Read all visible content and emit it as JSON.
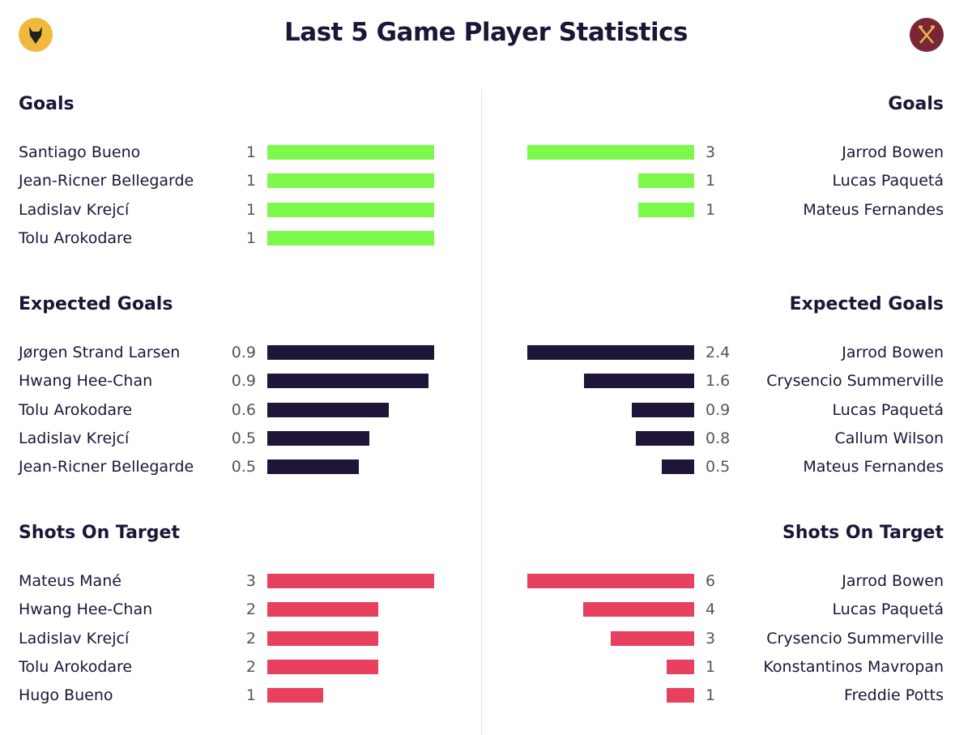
{
  "title": "Last 5 Game Player Statistics",
  "colors": {
    "goals": "#7cf94b",
    "xg": "#1f1538",
    "shots": "#e8415f",
    "text": "#1c1538"
  },
  "home_logo": "wolves-crest-icon",
  "away_logo": "west-ham-crest-icon",
  "chart_data": [
    {
      "type": "bar",
      "title": "Goals",
      "home": [
        {
          "name": "Santiago Bueno",
          "value": "1",
          "fill": 1
        },
        {
          "name": "Jean-Ricner Bellegarde",
          "value": "1",
          "fill": 1
        },
        {
          "name": "Ladislav Krejcí",
          "value": "1",
          "fill": 1
        },
        {
          "name": "Tolu Arokodare",
          "value": "1",
          "fill": 1
        }
      ],
      "away": [
        {
          "name": "Jarrod Bowen",
          "value": "3",
          "fill": 1
        },
        {
          "name": "Lucas Paquetá",
          "value": "1",
          "fill": 0.333
        },
        {
          "name": "Mateus Fernandes",
          "value": "1",
          "fill": 0.333
        }
      ]
    },
    {
      "type": "bar",
      "title": "Expected Goals",
      "home": [
        {
          "name": "Jørgen Strand Larsen",
          "value": "0.9",
          "fill": 1
        },
        {
          "name": "Hwang Hee-Chan",
          "value": "0.9",
          "fill": 0.966
        },
        {
          "name": "Tolu Arokodare",
          "value": "0.6",
          "fill": 0.728
        },
        {
          "name": "Ladislav Krejcí",
          "value": "0.5",
          "fill": 0.612
        },
        {
          "name": "Jean-Ricner Bellegarde",
          "value": "0.5",
          "fill": 0.549
        }
      ],
      "away": [
        {
          "name": "Jarrod Bowen",
          "value": "2.4",
          "fill": 1
        },
        {
          "name": "Crysencio Summerville",
          "value": "1.6",
          "fill": 0.66
        },
        {
          "name": "Lucas Paquetá",
          "value": "0.9",
          "fill": 0.374
        },
        {
          "name": "Callum Wilson",
          "value": "0.8",
          "fill": 0.35
        },
        {
          "name": "Mateus Fernandes",
          "value": "0.5",
          "fill": 0.194
        }
      ]
    },
    {
      "type": "bar",
      "title": "Shots On Target",
      "home": [
        {
          "name": "Mateus Mané",
          "value": "3",
          "fill": 1
        },
        {
          "name": "Hwang Hee-Chan",
          "value": "2",
          "fill": 0.667
        },
        {
          "name": "Ladislav Krejcí",
          "value": "2",
          "fill": 0.667
        },
        {
          "name": "Tolu Arokodare",
          "value": "2",
          "fill": 0.667
        },
        {
          "name": "Hugo Bueno",
          "value": "1",
          "fill": 0.333
        }
      ],
      "away": [
        {
          "name": "Jarrod Bowen",
          "value": "6",
          "fill": 1
        },
        {
          "name": "Lucas Paquetá",
          "value": "4",
          "fill": 0.667
        },
        {
          "name": "Crysencio Summerville",
          "value": "3",
          "fill": 0.5
        },
        {
          "name": "Konstantinos Mavropan",
          "value": "1",
          "fill": 0.167
        },
        {
          "name": "Freddie Potts",
          "value": "1",
          "fill": 0.167
        }
      ]
    }
  ]
}
